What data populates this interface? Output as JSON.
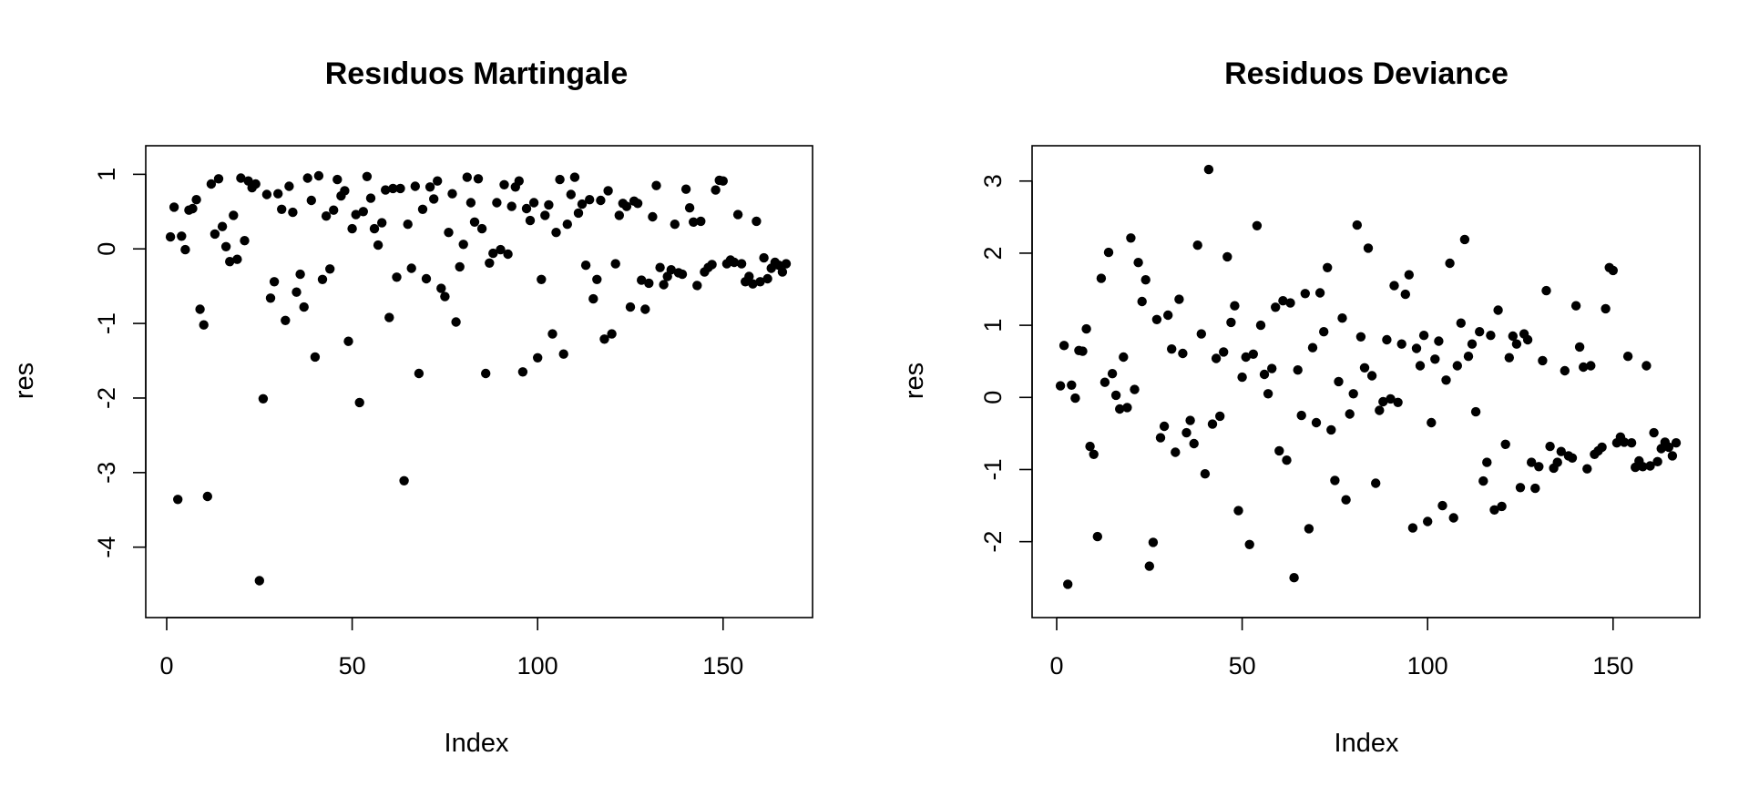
{
  "chart_data": [
    {
      "type": "scatter",
      "title": "Resıduos Martingale",
      "xlabel": "Index",
      "ylabel": "res",
      "xlim": [
        0,
        167
      ],
      "ylim": [
        -4.7,
        1.2
      ],
      "x_ticks": [
        0,
        50,
        100,
        150
      ],
      "y_ticks": [
        -4,
        -3,
        -2,
        -1,
        0,
        1
      ],
      "grid": false,
      "legend": "none",
      "marker_color": "#000000",
      "points": [
        [
          1,
          0.16
        ],
        [
          2,
          0.56
        ],
        [
          3,
          -3.36
        ],
        [
          4,
          0.17
        ],
        [
          5,
          -0.01
        ],
        [
          6,
          0.52
        ],
        [
          7,
          0.54
        ],
        [
          8,
          0.66
        ],
        [
          9,
          -0.81
        ],
        [
          10,
          -1.02
        ],
        [
          11,
          -3.32
        ],
        [
          12,
          0.87
        ],
        [
          13,
          0.2
        ],
        [
          14,
          0.94
        ],
        [
          15,
          0.3
        ],
        [
          16,
          0.03
        ],
        [
          17,
          -0.17
        ],
        [
          18,
          0.45
        ],
        [
          19,
          -0.14
        ],
        [
          20,
          0.95
        ],
        [
          21,
          0.11
        ],
        [
          22,
          0.91
        ],
        [
          23,
          0.82
        ],
        [
          24,
          0.87
        ],
        [
          25,
          -4.45
        ],
        [
          26,
          -2.01
        ],
        [
          27,
          0.73
        ],
        [
          28,
          -0.66
        ],
        [
          29,
          -0.44
        ],
        [
          30,
          0.74
        ],
        [
          31,
          0.53
        ],
        [
          32,
          -0.96
        ],
        [
          33,
          0.84
        ],
        [
          34,
          0.49
        ],
        [
          35,
          -0.58
        ],
        [
          36,
          -0.34
        ],
        [
          37,
          -0.78
        ],
        [
          38,
          0.95
        ],
        [
          39,
          0.65
        ],
        [
          40,
          -1.45
        ],
        [
          41,
          0.98
        ],
        [
          42,
          -0.41
        ],
        [
          43,
          0.44
        ],
        [
          44,
          -0.27
        ],
        [
          45,
          0.52
        ],
        [
          46,
          0.93
        ],
        [
          47,
          0.71
        ],
        [
          48,
          0.78
        ],
        [
          49,
          -1.24
        ],
        [
          50,
          0.27
        ],
        [
          51,
          0.46
        ],
        [
          52,
          -2.06
        ],
        [
          53,
          0.5
        ],
        [
          54,
          0.97
        ],
        [
          55,
          0.68
        ],
        [
          56,
          0.27
        ],
        [
          57,
          0.05
        ],
        [
          58,
          0.35
        ],
        [
          59,
          0.79
        ],
        [
          60,
          -0.92
        ],
        [
          61,
          0.81
        ],
        [
          62,
          -0.38
        ],
        [
          63,
          0.81
        ],
        [
          64,
          -3.11
        ],
        [
          65,
          0.33
        ],
        [
          66,
          -0.26
        ],
        [
          67,
          0.84
        ],
        [
          68,
          -1.67
        ],
        [
          69,
          0.53
        ],
        [
          70,
          -0.4
        ],
        [
          71,
          0.83
        ],
        [
          72,
          0.67
        ],
        [
          73,
          0.91
        ],
        [
          74,
          -0.53
        ],
        [
          75,
          -0.64
        ],
        [
          76,
          0.22
        ],
        [
          77,
          0.74
        ],
        [
          78,
          -0.98
        ],
        [
          79,
          -0.24
        ],
        [
          80,
          0.06
        ],
        [
          81,
          0.96
        ],
        [
          82,
          0.62
        ],
        [
          83,
          0.36
        ],
        [
          84,
          0.94
        ],
        [
          85,
          0.27
        ],
        [
          86,
          -1.67
        ],
        [
          87,
          -0.19
        ],
        [
          88,
          -0.06
        ],
        [
          89,
          0.62
        ],
        [
          90,
          -0.01
        ],
        [
          91,
          0.86
        ],
        [
          92,
          -0.07
        ],
        [
          93,
          0.57
        ],
        [
          94,
          0.83
        ],
        [
          95,
          0.91
        ],
        [
          96,
          -1.65
        ],
        [
          97,
          0.54
        ],
        [
          98,
          0.38
        ],
        [
          99,
          0.62
        ],
        [
          100,
          -1.46
        ],
        [
          101,
          -0.41
        ],
        [
          102,
          0.45
        ],
        [
          103,
          0.59
        ],
        [
          104,
          -1.14
        ],
        [
          105,
          0.22
        ],
        [
          106,
          0.93
        ],
        [
          107,
          -1.41
        ],
        [
          108,
          0.33
        ],
        [
          109,
          0.73
        ],
        [
          110,
          0.96
        ],
        [
          111,
          0.48
        ],
        [
          112,
          0.6
        ],
        [
          113,
          -0.22
        ],
        [
          114,
          0.66
        ],
        [
          115,
          -0.67
        ],
        [
          116,
          -0.41
        ],
        [
          117,
          0.65
        ],
        [
          118,
          -1.21
        ],
        [
          119,
          0.78
        ],
        [
          120,
          -1.14
        ],
        [
          121,
          -0.2
        ],
        [
          122,
          0.45
        ],
        [
          123,
          0.61
        ],
        [
          124,
          0.57
        ],
        [
          125,
          -0.78
        ],
        [
          126,
          0.64
        ],
        [
          127,
          0.61
        ],
        [
          128,
          -0.42
        ],
        [
          129,
          -0.81
        ],
        [
          130,
          -0.46
        ],
        [
          131,
          0.43
        ],
        [
          132,
          0.85
        ],
        [
          133,
          -0.25
        ],
        [
          134,
          -0.48
        ],
        [
          135,
          -0.37
        ],
        [
          136,
          -0.28
        ],
        [
          137,
          0.33
        ],
        [
          138,
          -0.32
        ],
        [
          139,
          -0.34
        ],
        [
          140,
          0.8
        ],
        [
          141,
          0.55
        ],
        [
          142,
          0.36
        ],
        [
          143,
          -0.49
        ],
        [
          144,
          0.37
        ],
        [
          145,
          -0.31
        ],
        [
          146,
          -0.25
        ],
        [
          147,
          -0.21
        ],
        [
          148,
          0.79
        ],
        [
          149,
          0.92
        ],
        [
          150,
          0.91
        ],
        [
          151,
          -0.2
        ],
        [
          152,
          -0.15
        ],
        [
          153,
          -0.18
        ],
        [
          154,
          0.46
        ],
        [
          155,
          -0.2
        ],
        [
          156,
          -0.44
        ],
        [
          157,
          -0.37
        ],
        [
          158,
          -0.47
        ],
        [
          159,
          0.37
        ],
        [
          160,
          -0.44
        ],
        [
          161,
          -0.12
        ],
        [
          162,
          -0.4
        ],
        [
          163,
          -0.26
        ],
        [
          164,
          -0.18
        ],
        [
          165,
          -0.22
        ],
        [
          166,
          -0.31
        ],
        [
          167,
          -0.2
        ]
      ]
    },
    {
      "type": "scatter",
      "title": "Residuos Deviance",
      "xlabel": "Index",
      "ylabel": "res",
      "xlim": [
        0,
        167
      ],
      "ylim": [
        -2.8,
        3.3
      ],
      "x_ticks": [
        0,
        50,
        100,
        150
      ],
      "y_ticks": [
        -2,
        -1,
        0,
        1,
        2,
        3
      ],
      "grid": false,
      "legend": "none",
      "marker_color": "#000000",
      "points": [
        [
          1,
          0.16
        ],
        [
          2,
          0.72
        ],
        [
          3,
          -2.59
        ],
        [
          4,
          0.17
        ],
        [
          5,
          -0.01
        ],
        [
          6,
          0.65
        ],
        [
          7,
          0.64
        ],
        [
          8,
          0.95
        ],
        [
          9,
          -0.68
        ],
        [
          10,
          -0.79
        ],
        [
          11,
          -1.93
        ],
        [
          12,
          1.65
        ],
        [
          13,
          0.21
        ],
        [
          14,
          2.01
        ],
        [
          15,
          0.33
        ],
        [
          16,
          0.03
        ],
        [
          17,
          -0.16
        ],
        [
          18,
          0.56
        ],
        [
          19,
          -0.14
        ],
        [
          20,
          2.21
        ],
        [
          21,
          0.11
        ],
        [
          22,
          1.87
        ],
        [
          23,
          1.33
        ],
        [
          24,
          1.63
        ],
        [
          25,
          -2.34
        ],
        [
          26,
          -2.01
        ],
        [
          27,
          1.08
        ],
        [
          28,
          -0.56
        ],
        [
          29,
          -0.4
        ],
        [
          30,
          1.14
        ],
        [
          31,
          0.67
        ],
        [
          32,
          -0.76
        ],
        [
          33,
          1.36
        ],
        [
          34,
          0.61
        ],
        [
          35,
          -0.49
        ],
        [
          36,
          -0.32
        ],
        [
          37,
          -0.64
        ],
        [
          38,
          2.11
        ],
        [
          39,
          0.88
        ],
        [
          40,
          -1.06
        ],
        [
          41,
          3.16
        ],
        [
          42,
          -0.37
        ],
        [
          43,
          0.54
        ],
        [
          44,
          -0.26
        ],
        [
          45,
          0.63
        ],
        [
          46,
          1.95
        ],
        [
          47,
          1.04
        ],
        [
          48,
          1.27
        ],
        [
          49,
          -1.57
        ],
        [
          50,
          0.28
        ],
        [
          51,
          0.56
        ],
        [
          52,
          -2.04
        ],
        [
          53,
          0.6
        ],
        [
          54,
          2.38
        ],
        [
          55,
          1.0
        ],
        [
          56,
          0.32
        ],
        [
          57,
          0.05
        ],
        [
          58,
          0.4
        ],
        [
          59,
          1.25
        ],
        [
          60,
          -0.74
        ],
        [
          61,
          1.34
        ],
        [
          62,
          -0.87
        ],
        [
          63,
          1.31
        ],
        [
          64,
          -2.5
        ],
        [
          65,
          0.38
        ],
        [
          66,
          -0.25
        ],
        [
          67,
          1.44
        ],
        [
          68,
          -1.82
        ],
        [
          69,
          0.69
        ],
        [
          70,
          -0.35
        ],
        [
          71,
          1.45
        ],
        [
          72,
          0.91
        ],
        [
          73,
          1.8
        ],
        [
          74,
          -0.45
        ],
        [
          75,
          -1.15
        ],
        [
          76,
          0.22
        ],
        [
          77,
          1.1
        ],
        [
          78,
          -1.42
        ],
        [
          79,
          -0.23
        ],
        [
          80,
          0.05
        ],
        [
          81,
          2.39
        ],
        [
          82,
          0.84
        ],
        [
          83,
          0.41
        ],
        [
          84,
          2.07
        ],
        [
          85,
          0.3
        ],
        [
          86,
          -1.19
        ],
        [
          87,
          -0.18
        ],
        [
          88,
          -0.06
        ],
        [
          89,
          0.8
        ],
        [
          90,
          -0.02
        ],
        [
          91,
          1.55
        ],
        [
          92,
          -0.07
        ],
        [
          93,
          0.74
        ],
        [
          94,
          1.43
        ],
        [
          95,
          1.7
        ],
        [
          96,
          -1.81
        ],
        [
          97,
          0.68
        ],
        [
          98,
          0.44
        ],
        [
          99,
          0.86
        ],
        [
          100,
          -1.72
        ],
        [
          101,
          -0.35
        ],
        [
          102,
          0.53
        ],
        [
          103,
          0.78
        ],
        [
          104,
          -1.5
        ],
        [
          105,
          0.24
        ],
        [
          106,
          1.86
        ],
        [
          107,
          -1.67
        ],
        [
          108,
          0.44
        ],
        [
          109,
          1.03
        ],
        [
          110,
          2.19
        ],
        [
          111,
          0.57
        ],
        [
          112,
          0.74
        ],
        [
          113,
          -0.2
        ],
        [
          114,
          0.91
        ],
        [
          115,
          -1.16
        ],
        [
          116,
          -0.9
        ],
        [
          117,
          0.86
        ],
        [
          118,
          -1.56
        ],
        [
          119,
          1.21
        ],
        [
          120,
          -1.51
        ],
        [
          121,
          -0.65
        ],
        [
          122,
          0.55
        ],
        [
          123,
          0.85
        ],
        [
          124,
          0.74
        ],
        [
          125,
          -1.25
        ],
        [
          126,
          0.88
        ],
        [
          127,
          0.8
        ],
        [
          128,
          -0.9
        ],
        [
          129,
          -1.26
        ],
        [
          130,
          -0.96
        ],
        [
          131,
          0.51
        ],
        [
          132,
          1.48
        ],
        [
          133,
          -0.68
        ],
        [
          134,
          -0.98
        ],
        [
          135,
          -0.9
        ],
        [
          136,
          -0.75
        ],
        [
          137,
          0.37
        ],
        [
          138,
          -0.81
        ],
        [
          139,
          -0.84
        ],
        [
          140,
          1.27
        ],
        [
          141,
          0.7
        ],
        [
          142,
          0.42
        ],
        [
          143,
          -0.99
        ],
        [
          144,
          0.44
        ],
        [
          145,
          -0.79
        ],
        [
          146,
          -0.74
        ],
        [
          147,
          -0.69
        ],
        [
          148,
          1.23
        ],
        [
          149,
          1.8
        ],
        [
          150,
          1.76
        ],
        [
          151,
          -0.63
        ],
        [
          152,
          -0.55
        ],
        [
          153,
          -0.62
        ],
        [
          154,
          0.57
        ],
        [
          155,
          -0.63
        ],
        [
          156,
          -0.97
        ],
        [
          157,
          -0.88
        ],
        [
          158,
          -0.96
        ],
        [
          159,
          0.44
        ],
        [
          160,
          -0.95
        ],
        [
          161,
          -0.49
        ],
        [
          162,
          -0.89
        ],
        [
          163,
          -0.71
        ],
        [
          164,
          -0.62
        ],
        [
          165,
          -0.69
        ],
        [
          166,
          -0.81
        ],
        [
          167,
          -0.63
        ]
      ]
    }
  ]
}
